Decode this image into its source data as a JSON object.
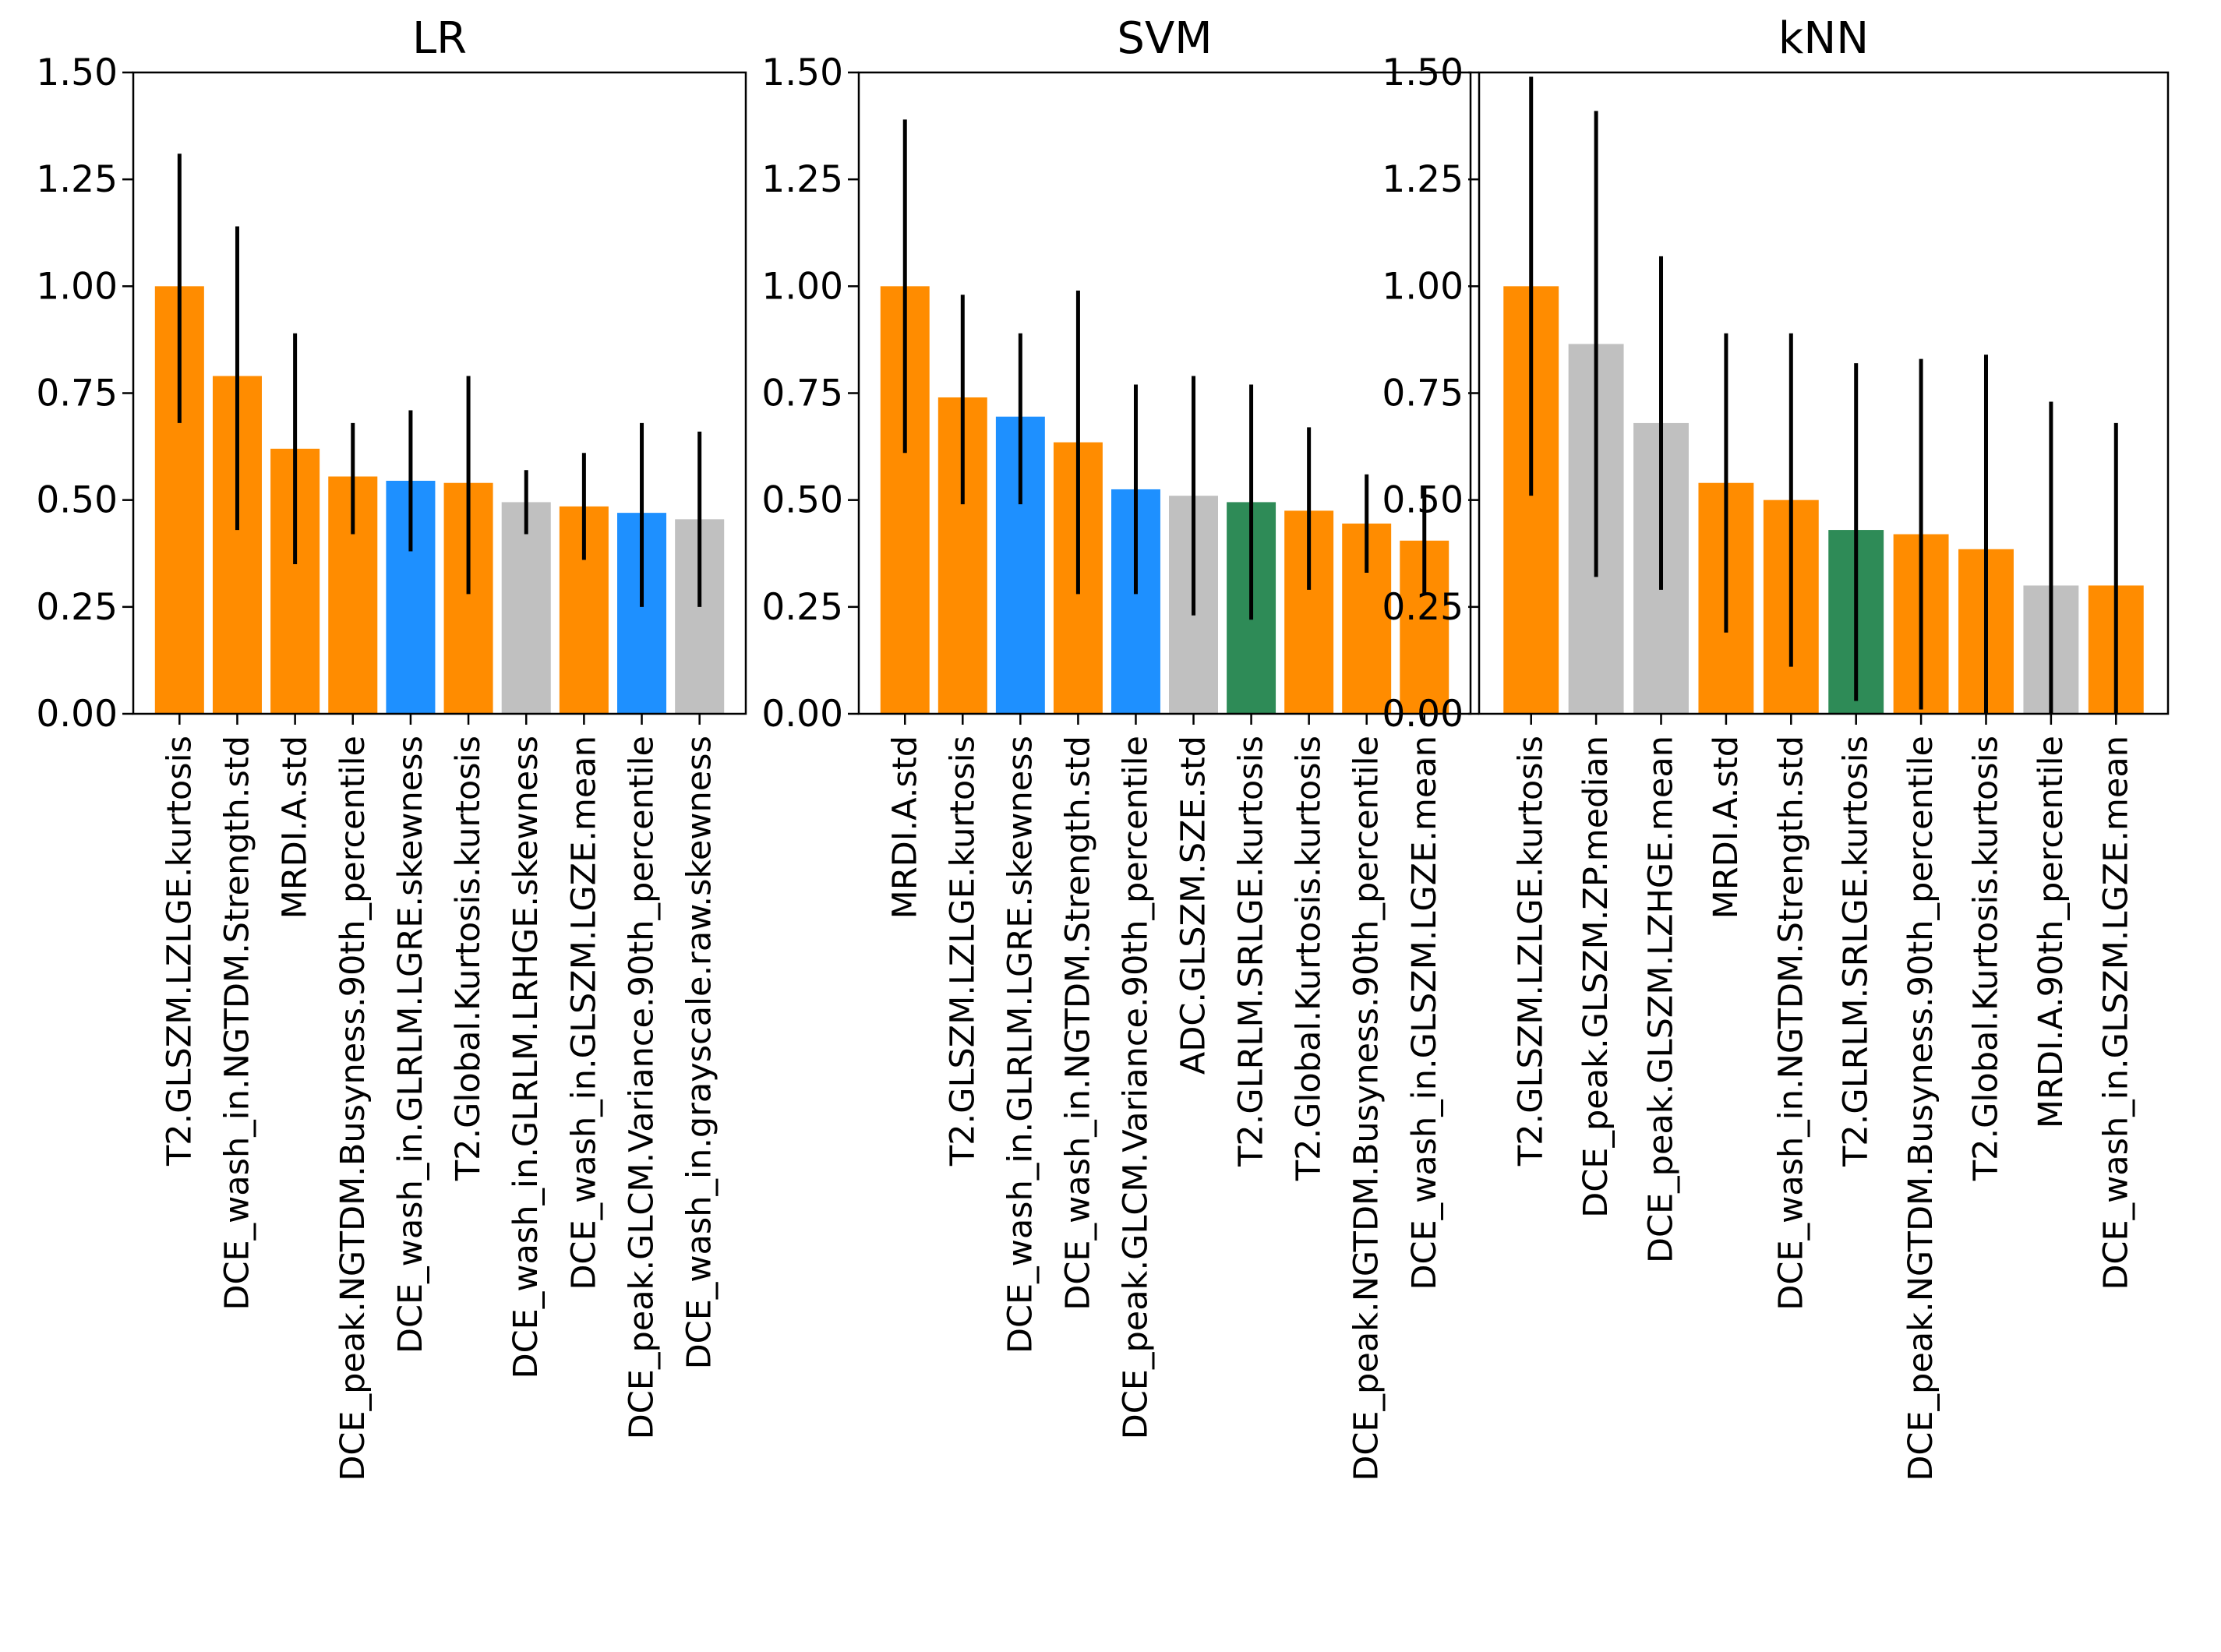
{
  "colors": {
    "orange": "#ff8c00",
    "blue": "#1e90ff",
    "gray": "#c0c0c0",
    "green": "#2e8b57",
    "errorbar": "#000000"
  },
  "chart_data": [
    {
      "type": "bar",
      "title": "LR",
      "ylim": [
        0,
        1.5
      ],
      "yticks": [
        "0.00",
        "0.25",
        "0.50",
        "0.75",
        "1.00",
        "1.25",
        "1.50"
      ],
      "categories": [
        "T2.GLSZM.LZLGE.kurtosis",
        "DCE_wash_in.NGTDM.Strength.std",
        "MRDI.A.std",
        "DCE_peak.NGTDM.Busyness.90th_percentile",
        "DCE_wash_in.GLRLM.LGRE.skewness",
        "T2.Global.Kurtosis.kurtosis",
        "DCE_wash_in.GLRLM.LRHGE.skewness",
        "DCE_wash_in.GLSZM.LGZE.mean",
        "DCE_peak.GLCM.Variance.90th_percentile",
        "DCE_wash_in.grayscale.raw.skewness"
      ],
      "values": [
        1.0,
        0.79,
        0.62,
        0.555,
        0.545,
        0.54,
        0.495,
        0.485,
        0.47,
        0.455
      ],
      "err_low": [
        0.68,
        0.43,
        0.35,
        0.42,
        0.38,
        0.28,
        0.42,
        0.36,
        0.25,
        0.25
      ],
      "err_high": [
        1.31,
        1.14,
        0.89,
        0.68,
        0.71,
        0.79,
        0.57,
        0.61,
        0.68,
        0.66
      ],
      "colors": [
        "orange",
        "orange",
        "orange",
        "orange",
        "blue",
        "orange",
        "gray",
        "orange",
        "blue",
        "gray"
      ]
    },
    {
      "type": "bar",
      "title": "SVM",
      "ylim": [
        0,
        1.5
      ],
      "yticks": [
        "0.00",
        "0.25",
        "0.50",
        "0.75",
        "1.00",
        "1.25",
        "1.50"
      ],
      "categories": [
        "MRDI.A.std",
        "T2.GLSZM.LZLGE.kurtosis",
        "DCE_wash_in.GLRLM.LGRE.skewness",
        "DCE_wash_in.NGTDM.Strength.std",
        "DCE_peak.GLCM.Variance.90th_percentile",
        "ADC.GLSZM.SZE.std",
        "T2.GLRLM.SRLGE.kurtosis",
        "T2.Global.Kurtosis.kurtosis",
        "DCE_peak.NGTDM.Busyness.90th_percentile",
        "DCE_wash_in.GLSZM.LGZE.mean"
      ],
      "values": [
        1.0,
        0.74,
        0.695,
        0.635,
        0.525,
        0.51,
        0.495,
        0.475,
        0.445,
        0.405
      ],
      "err_low": [
        0.61,
        0.49,
        0.49,
        0.28,
        0.28,
        0.23,
        0.22,
        0.29,
        0.33,
        0.28
      ],
      "err_high": [
        1.39,
        0.98,
        0.89,
        0.99,
        0.77,
        0.79,
        0.77,
        0.67,
        0.56,
        0.53
      ],
      "colors": [
        "orange",
        "orange",
        "blue",
        "orange",
        "blue",
        "gray",
        "green",
        "orange",
        "orange",
        "orange"
      ]
    },
    {
      "type": "bar",
      "title": "kNN",
      "ylim": [
        0,
        1.5
      ],
      "yticks": [
        "0.00",
        "0.25",
        "0.50",
        "0.75",
        "1.00",
        "1.25",
        "1.50"
      ],
      "categories": [
        "T2.GLSZM.LZLGE.kurtosis",
        "DCE_peak.GLSZM.ZP.median",
        "DCE_peak.GLSZM.LZHGE.mean",
        "MRDI.A.std",
        "DCE_wash_in.NGTDM.Strength.std",
        "T2.GLRLM.SRLGE.kurtosis",
        "DCE_peak.NGTDM.Busyness.90th_percentile",
        "T2.Global.Kurtosis.kurtosis",
        "MRDI.A.90th_percentile",
        "DCE_wash_in.GLSZM.LGZE.mean"
      ],
      "values": [
        1.0,
        0.865,
        0.68,
        0.54,
        0.5,
        0.43,
        0.42,
        0.385,
        0.3,
        0.3
      ],
      "err_low": [
        0.51,
        0.32,
        0.29,
        0.19,
        0.11,
        0.03,
        0.01,
        0.0,
        0.0,
        0.0
      ],
      "err_high": [
        1.49,
        1.41,
        1.07,
        0.89,
        0.89,
        0.82,
        0.83,
        0.84,
        0.73,
        0.68
      ],
      "colors": [
        "orange",
        "gray",
        "gray",
        "orange",
        "orange",
        "green",
        "orange",
        "orange",
        "gray",
        "orange"
      ]
    }
  ]
}
